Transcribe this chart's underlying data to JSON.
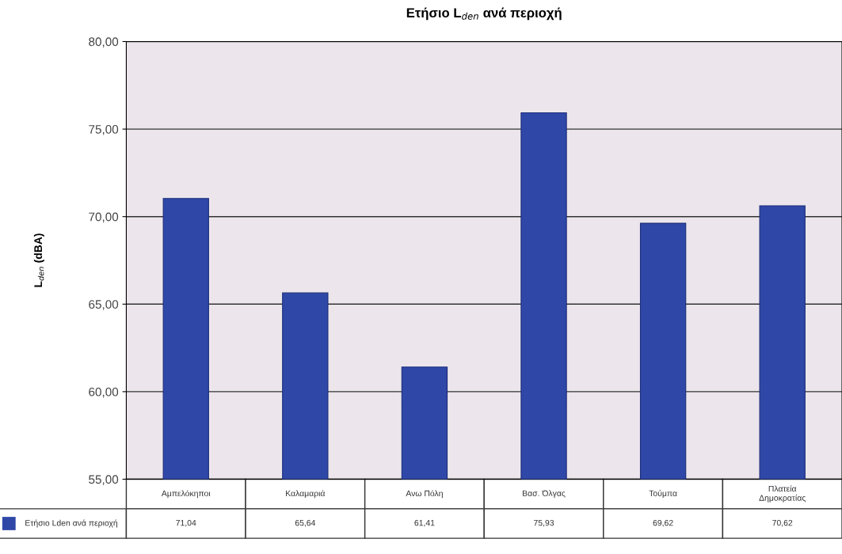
{
  "chart_data": {
    "type": "bar",
    "title": "Ετήσιο L$_{den}$ ανά περιοχή",
    "ylabel": "L$_{den}$ (dBA)",
    "categories": [
      "Αμπελόκηποι",
      "Καλαμαριά",
      "Ανω Πόλη",
      "Βασ. Όλγας",
      "Τούμπα",
      "Πλατεία Δημοκρατίας"
    ],
    "series": [
      {
        "name": "Ετήσιο Lden ανά περιοχή",
        "color": "#2f48a8",
        "values": [
          71.04,
          65.64,
          61.41,
          75.93,
          69.62,
          70.62
        ]
      }
    ],
    "value_labels": [
      "71,04",
      "65,64",
      "61,41",
      "75,93",
      "69,62",
      "70,62"
    ],
    "ylim": [
      55,
      80
    ],
    "yticks": [
      {
        "value": 55,
        "label": "55,00"
      },
      {
        "value": 60,
        "label": "60,00"
      },
      {
        "value": 65,
        "label": "65,00"
      },
      {
        "value": 70,
        "label": "70,00"
      },
      {
        "value": 75,
        "label": "75,00"
      },
      {
        "value": 80,
        "label": "80,00"
      }
    ],
    "grid": "y",
    "legend": "bottom left"
  }
}
